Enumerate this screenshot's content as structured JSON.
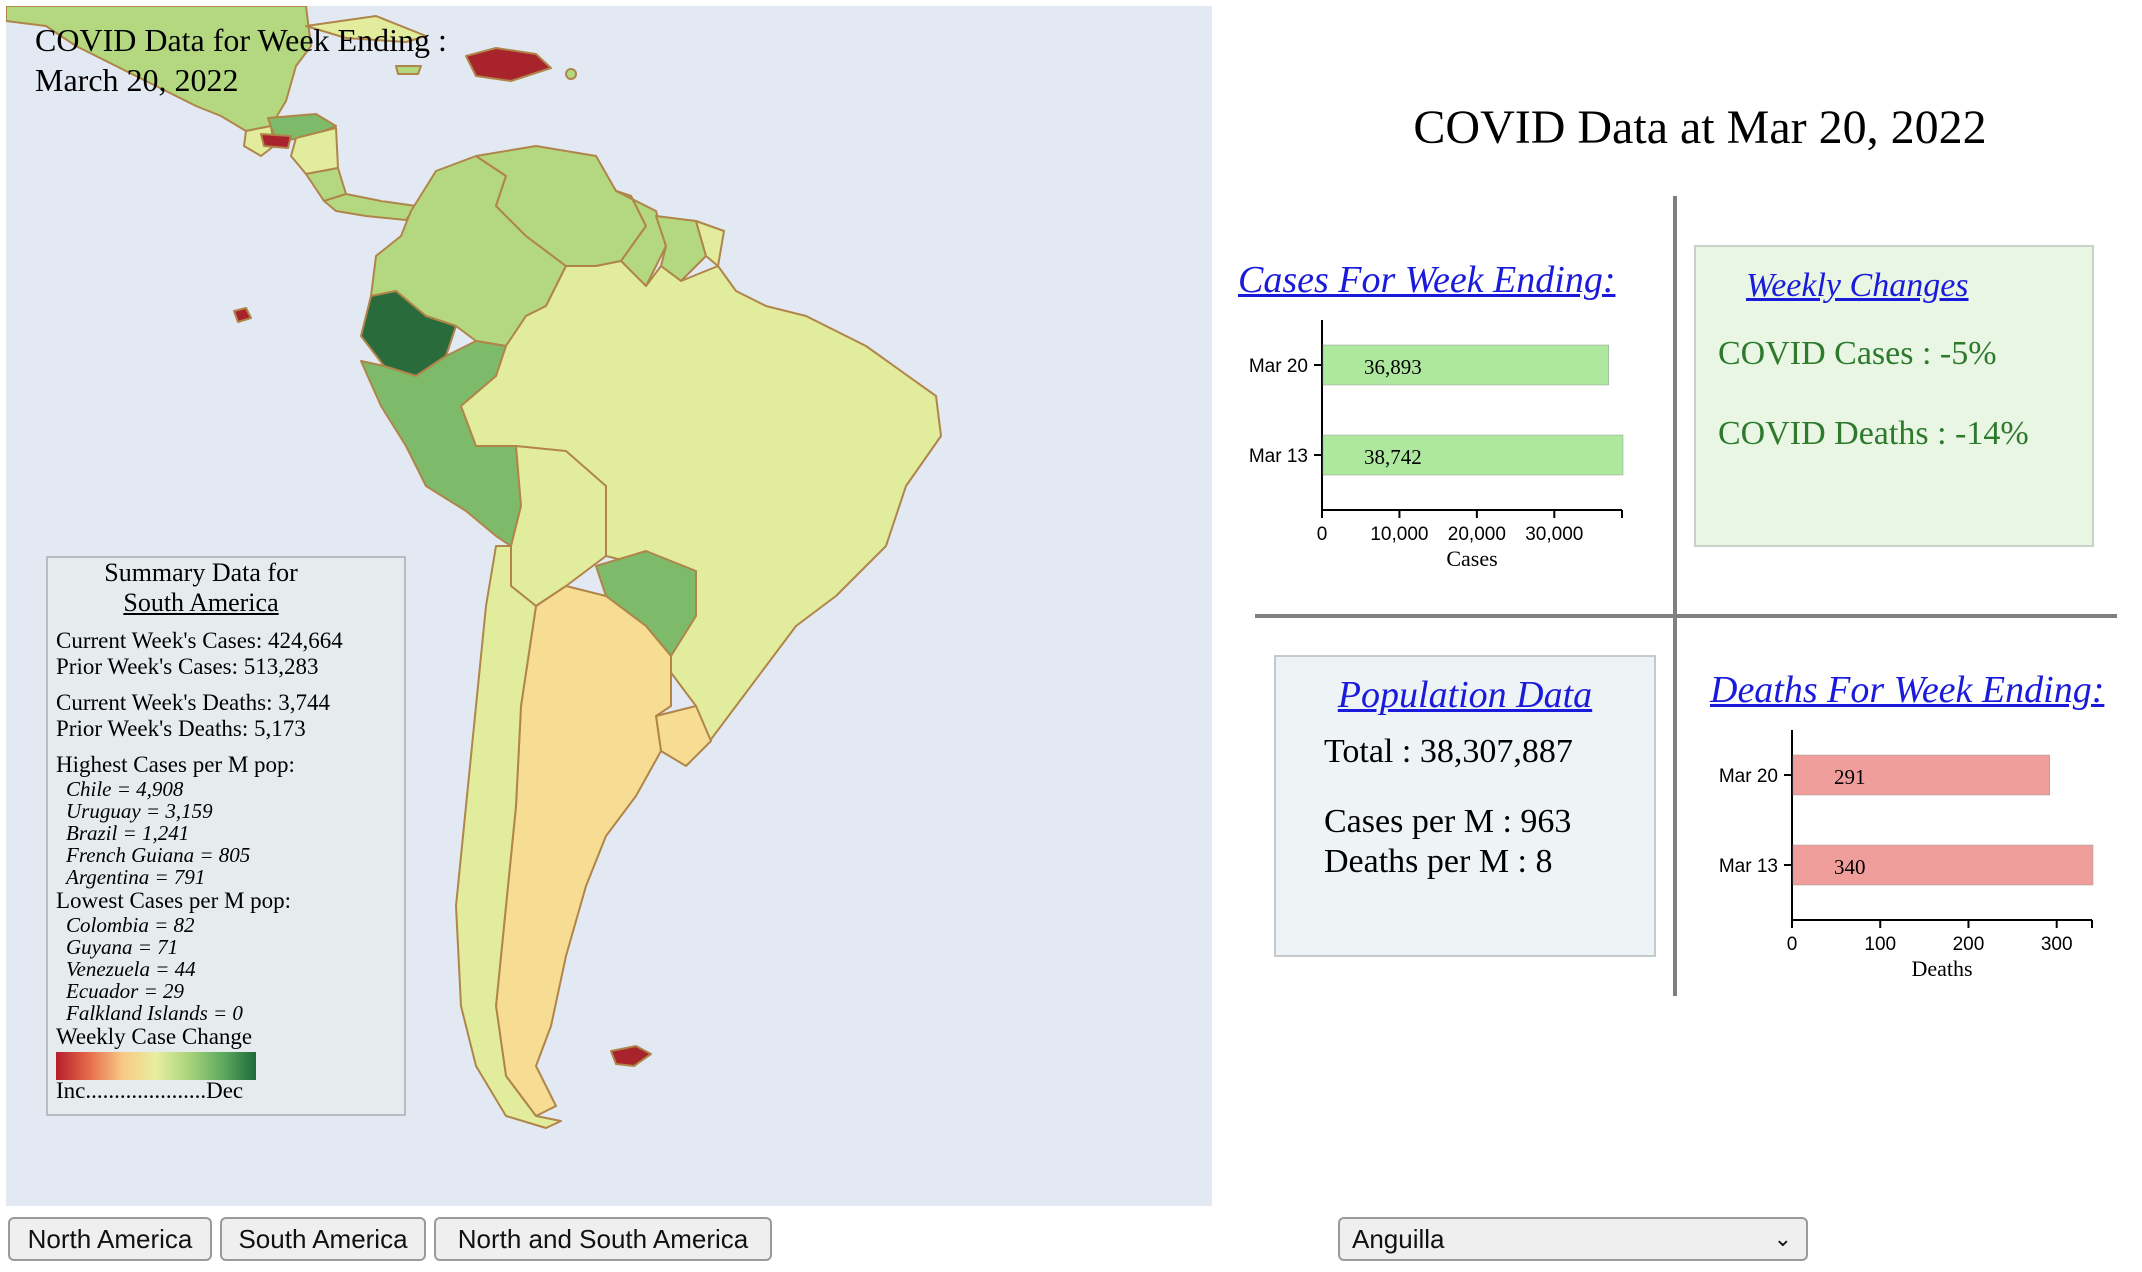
{
  "map": {
    "title_line1": "COVID Data for Week Ending :",
    "title_line2": "March 20, 2022",
    "summary": {
      "title": "Summary Data for",
      "region": "South America",
      "current_cases": "Current Week's Cases: 424,664",
      "prior_cases": "Prior Week's Cases: 513,283",
      "current_deaths": "Current Week's Deaths: 3,744",
      "prior_deaths": "Prior Week's Deaths: 5,173",
      "highest_label": "Highest Cases per M pop:",
      "highest": [
        "Chile = 4,908",
        "Uruguay = 3,159",
        "Brazil = 1,241",
        "French Guiana = 805",
        "Argentina = 791"
      ],
      "lowest_label": "Lowest Cases per M pop:",
      "lowest": [
        "Colombia = 82",
        "Guyana = 71",
        "Venezuela = 44",
        "Ecuador = 29",
        "Falkland Islands = 0"
      ],
      "legend_title": "Weekly Case Change",
      "legend_ends": "Inc.....................Dec"
    },
    "colors": {
      "ocean": "#e3e9f2",
      "border": "#b0854a",
      "light_yellow": "#e2ec9d",
      "orange": "#f7dc93",
      "light_green": "#b4d87f",
      "green": "#7dbb6b",
      "dark_green": "#2a6b3c",
      "red": "#a8232c"
    }
  },
  "main_title": "COVID Data at Mar 20, 2022",
  "cases_chart": {
    "heading": "Cases For Week Ending:",
    "chart_data": {
      "type": "bar",
      "orientation": "horizontal",
      "categories": [
        "Mar 20",
        "Mar 13"
      ],
      "values": [
        36893,
        38742
      ],
      "value_labels": [
        "36,893",
        "38,742"
      ],
      "xlabel": "Cases",
      "ticks": [
        0,
        10000,
        20000,
        30000
      ],
      "tick_labels": [
        "0",
        "10,000",
        "20,000",
        "30,000"
      ],
      "xlim": [
        0,
        38742
      ],
      "bar_color": "#aee89f"
    }
  },
  "weekly": {
    "title": "Weekly Changes",
    "cases": "COVID Cases : -5%",
    "deaths": "COVID Deaths : -14%"
  },
  "population": {
    "title": "Population Data",
    "total": "Total : 38,307,887",
    "cases_per_m": "Cases per M : 963",
    "deaths_per_m": "Deaths per M : 8"
  },
  "deaths_chart": {
    "heading": "Deaths For Week Ending:",
    "chart_data": {
      "type": "bar",
      "orientation": "horizontal",
      "categories": [
        "Mar 20",
        "Mar 13"
      ],
      "values": [
        291,
        340
      ],
      "value_labels": [
        "291",
        "340"
      ],
      "xlabel": "Deaths",
      "ticks": [
        0,
        100,
        200,
        300
      ],
      "tick_labels": [
        "0",
        "100",
        "200",
        "300"
      ],
      "xlim": [
        0,
        340
      ],
      "bar_color": "#f09e9c"
    }
  },
  "controls": {
    "buttons": [
      "North America",
      "South America",
      "North and South America"
    ],
    "select_value": "Anguilla"
  }
}
